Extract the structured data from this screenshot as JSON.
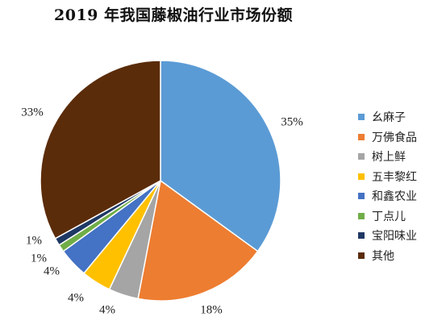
{
  "chart_data": {
    "type": "pie",
    "title": "2019 年我国藤椒油行业市场份额",
    "series": [
      {
        "name": "幺麻子",
        "value": 35,
        "label": "35%",
        "color": "#5b9bd5"
      },
      {
        "name": "万佛食品",
        "value": 18,
        "label": "18%",
        "color": "#ed7d31"
      },
      {
        "name": "树上鲜",
        "value": 4,
        "label": "4%",
        "color": "#a5a5a5"
      },
      {
        "name": "五丰黎红",
        "value": 4,
        "label": "4%",
        "color": "#ffc000"
      },
      {
        "name": "和鑫农业",
        "value": 4,
        "label": "4%",
        "color": "#4472c4"
      },
      {
        "name": "丁点儿",
        "value": 1,
        "label": "1%",
        "color": "#70ad47"
      },
      {
        "name": "宝阳味业",
        "value": 1,
        "label": "1%",
        "color": "#1f3864"
      },
      {
        "name": "其他",
        "value": 33,
        "label": "33%",
        "color": "#5b2c0a"
      }
    ],
    "legend_position": "right"
  }
}
